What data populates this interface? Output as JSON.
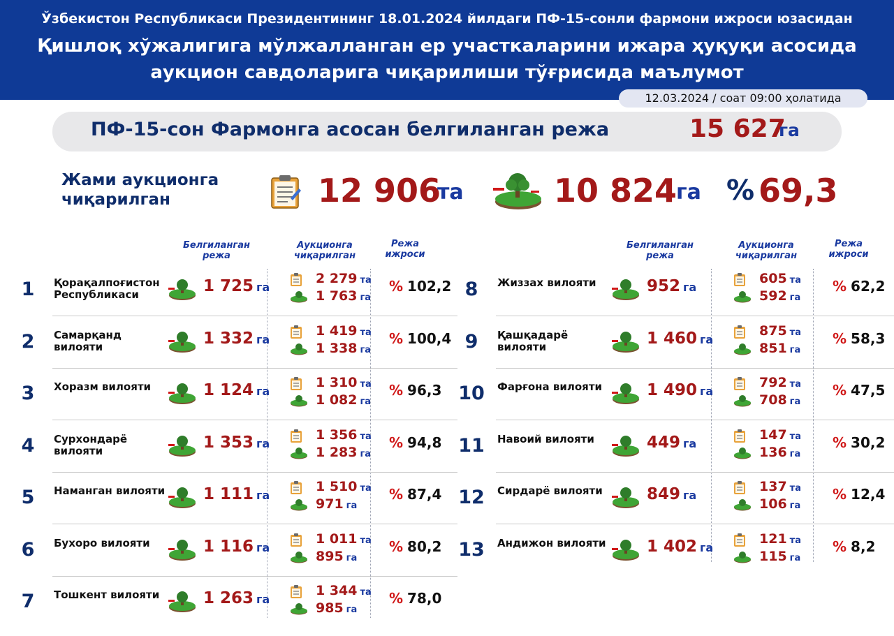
{
  "header": {
    "subtitle": "Ўзбекистон Республикаси Президентининг 18.01.2024 йилдаги ПФ-15-сонли фармони ижроси юзасидан",
    "title_line1": "Қишлоқ хўжалигига мўлжалланган ер участкаларини ижара ҳуқуқи асосида",
    "title_line2": "аукцион савдоларига чиқарилиши тўғрисида маълумот",
    "date": "12.03.2024 / соат 09:00 ҳолатида"
  },
  "plan": {
    "label": "ПФ-15-сон Фармонга асосан белгиланган режа",
    "value": "15 627",
    "unit": "га"
  },
  "totals": {
    "label": "Жами аукционга чиқарилган",
    "count": "12 906",
    "count_unit": "та",
    "area": "10 824",
    "area_unit": "га",
    "percent_sign": "%",
    "percent": "69,3"
  },
  "columns": {
    "plan": "Белгиланган режа",
    "auction": "Аукционга чиқарилган",
    "execution": "Режа ижроси"
  },
  "units": {
    "ha": "га",
    "pcs": "та",
    "pct": "%"
  },
  "icons": {
    "document": "clipboard-icon",
    "land": "land-plot-icon"
  },
  "colors": {
    "header": "#0f3a96",
    "value_red": "#a31919",
    "unit_blue": "#1a3aa0",
    "percent_red": "#d01919"
  },
  "regions": [
    {
      "n": "1",
      "name": "Қорақалпоғистон Республикаси",
      "plan": "1 725",
      "count": "2 279",
      "area": "1 763",
      "pct": "102,2"
    },
    {
      "n": "2",
      "name": "Самарқанд вилояти",
      "plan": "1 332",
      "count": "1 419",
      "area": "1 338",
      "pct": "100,4"
    },
    {
      "n": "3",
      "name": "Хоразм вилояти",
      "plan": "1 124",
      "count": "1 310",
      "area": "1 082",
      "pct": "96,3"
    },
    {
      "n": "4",
      "name": "Сурхондарё вилояти",
      "plan": "1 353",
      "count": "1 356",
      "area": "1 283",
      "pct": "94,8"
    },
    {
      "n": "5",
      "name": "Наманган вилояти",
      "plan": "1 111",
      "count": "1 510",
      "area": "971",
      "pct": "87,4"
    },
    {
      "n": "6",
      "name": "Бухоро вилояти",
      "plan": "1 116",
      "count": "1 011",
      "area": "895",
      "pct": "80,2"
    },
    {
      "n": "7",
      "name": "Тошкент вилояти",
      "plan": "1 263",
      "count": "1 344",
      "area": "985",
      "pct": "78,0"
    },
    {
      "n": "8",
      "name": "Жиззах вилояти",
      "plan": "952",
      "count": "605",
      "area": "592",
      "pct": "62,2"
    },
    {
      "n": "9",
      "name": "Қашқадарё вилояти",
      "plan": "1 460",
      "count": "875",
      "area": "851",
      "pct": "58,3"
    },
    {
      "n": "10",
      "name": "Фарғона вилояти",
      "plan": "1 490",
      "count": "792",
      "area": "708",
      "pct": "47,5"
    },
    {
      "n": "11",
      "name": "Навоий вилояти",
      "plan": "449",
      "count": "147",
      "area": "136",
      "pct": "30,2"
    },
    {
      "n": "12",
      "name": "Сирдарё вилояти",
      "plan": "849",
      "count": "137",
      "area": "106",
      "pct": "12,4"
    },
    {
      "n": "13",
      "name": "Андижон вилояти",
      "plan": "1 402",
      "count": "121",
      "area": "115",
      "pct": "8,2"
    }
  ]
}
